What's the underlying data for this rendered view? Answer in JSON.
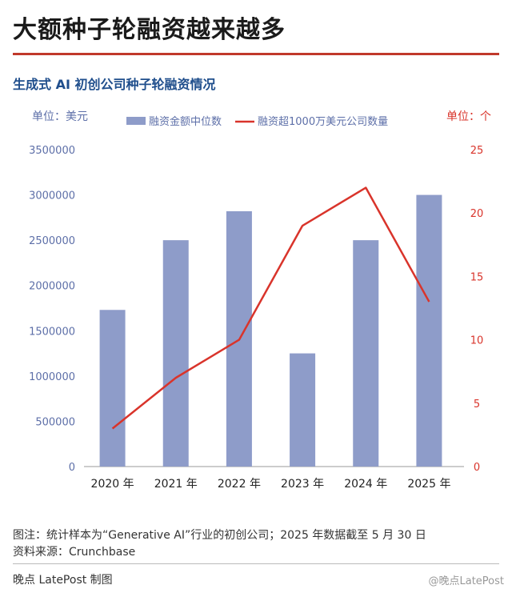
{
  "header": {
    "headline": "大额种子轮融资越来越多",
    "subtitle": "生成式 AI 初创公司种子轮融资情况"
  },
  "chart_data": {
    "type": "bar+line",
    "categories": [
      "2020 年",
      "2021 年",
      "2022 年",
      "2023 年",
      "2024 年",
      "2025 年"
    ],
    "left_axis": {
      "unit_label": "单位：美元",
      "ylim": [
        0,
        3500000
      ],
      "ticks": [
        "0",
        "500000",
        "1000000",
        "1500000",
        "2000000",
        "2500000",
        "3000000",
        "3500000"
      ]
    },
    "right_axis": {
      "unit_label": "单位：个",
      "ylim": [
        0,
        25
      ],
      "ticks": [
        "0",
        "5",
        "10",
        "15",
        "20",
        "25"
      ]
    },
    "series": [
      {
        "name": "融资金额中位数",
        "type": "bar",
        "axis": "left",
        "color": "#8e9cc9",
        "values": [
          1730000,
          2500000,
          2820000,
          1250000,
          2500000,
          3000000
        ]
      },
      {
        "name": "融资超1000万美元公司数量",
        "type": "line",
        "axis": "right",
        "color": "#d9342b",
        "values": [
          3,
          7,
          10,
          19,
          22,
          13
        ]
      }
    ],
    "legend_position": "top"
  },
  "notes": {
    "note1": "图注：统计样本为“Generative AI”行业的初创公司；2025 年数据截至 5 月 30 日",
    "note2": "资料来源：Crunchbase"
  },
  "footer": {
    "credit": "晚点 LatePost 制图",
    "weibo": "@晚点LatePost"
  }
}
